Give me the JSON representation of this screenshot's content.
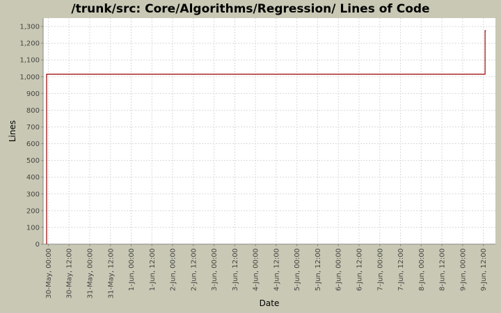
{
  "chart_data": {
    "type": "line",
    "title": "/trunk/src: Core/Algorithms/Regression/ Lines of Code",
    "xlabel": "Date",
    "ylabel": "Lines",
    "ylim": [
      0,
      1350
    ],
    "y_ticks": [
      0,
      100,
      200,
      300,
      400,
      500,
      600,
      700,
      800,
      900,
      1000,
      1100,
      1200,
      1300
    ],
    "y_tick_labels": [
      "0",
      "100",
      "200",
      "300",
      "400",
      "500",
      "600",
      "700",
      "800",
      "900",
      "1,000",
      "1,100",
      "1,200",
      "1,300"
    ],
    "x_range": [
      "2008-05-29T21:00",
      "2008-06-09T19:00"
    ],
    "x_ticks": [
      "2008-05-30T00:00",
      "2008-05-30T12:00",
      "2008-05-31T00:00",
      "2008-05-31T12:00",
      "2008-06-01T00:00",
      "2008-06-01T12:00",
      "2008-06-02T00:00",
      "2008-06-02T12:00",
      "2008-06-03T00:00",
      "2008-06-03T12:00",
      "2008-06-04T00:00",
      "2008-06-04T12:00",
      "2008-06-05T00:00",
      "2008-06-05T12:00",
      "2008-06-06T00:00",
      "2008-06-06T12:00",
      "2008-06-07T00:00",
      "2008-06-07T12:00",
      "2008-06-08T00:00",
      "2008-06-08T12:00",
      "2008-06-09T00:00",
      "2008-06-09T12:00"
    ],
    "x_tick_labels": [
      "30-May, 00:00",
      "30-May, 12:00",
      "31-May, 00:00",
      "31-May, 12:00",
      "1-Jun, 00:00",
      "1-Jun, 12:00",
      "2-Jun, 00:00",
      "2-Jun, 12:00",
      "3-Jun, 00:00",
      "3-Jun, 12:00",
      "4-Jun, 00:00",
      "4-Jun, 12:00",
      "5-Jun, 00:00",
      "5-Jun, 12:00",
      "6-Jun, 00:00",
      "6-Jun, 12:00",
      "7-Jun, 00:00",
      "7-Jun, 12:00",
      "8-Jun, 00:00",
      "8-Jun, 12:00",
      "9-Jun, 00:00",
      "9-Jun, 12:00"
    ],
    "step": true,
    "grid": true,
    "series": [
      {
        "color": "#990000",
        "x": [
          "2008-05-29T23:00",
          "2008-05-29T23:00",
          "2008-06-09T13:00",
          "2008-06-09T13:00",
          "2008-06-09T13:30"
        ],
        "y": [
          0,
          1015,
          1015,
          1275,
          1275
        ]
      }
    ]
  },
  "colors": {
    "background": "#c8c8b4",
    "plot_background": "#ffffff",
    "grid": "#d8d8d8",
    "line": "#990000"
  }
}
